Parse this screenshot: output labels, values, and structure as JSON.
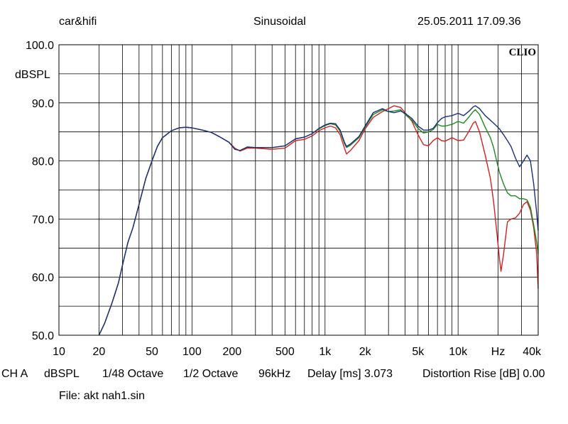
{
  "header": {
    "left": "car&hifi",
    "center": "Sinusoidal",
    "right": "25.05.2011 17.09.36"
  },
  "chart_data": {
    "type": "line",
    "logo": "CLIO",
    "ylabel": "dBSPL",
    "xscale": "log",
    "xlim": [
      10,
      40000
    ],
    "ylim": [
      50,
      100
    ],
    "grid": true,
    "y_ticks": [
      {
        "value": 100,
        "label": "100.0"
      },
      {
        "value": 90,
        "label": "90.0"
      },
      {
        "value": 80,
        "label": "80.0"
      },
      {
        "value": 70,
        "label": "70.0"
      },
      {
        "value": 60,
        "label": "60.0"
      },
      {
        "value": 50,
        "label": "50.0"
      }
    ],
    "x_ticks": [
      {
        "value": 10,
        "label": "10"
      },
      {
        "value": 20,
        "label": "20"
      },
      {
        "value": 50,
        "label": "50"
      },
      {
        "value": 100,
        "label": "100"
      },
      {
        "value": 200,
        "label": "200"
      },
      {
        "value": 500,
        "label": "500"
      },
      {
        "value": 1000,
        "label": "1k"
      },
      {
        "value": 2000,
        "label": "2k"
      },
      {
        "value": 5000,
        "label": "5k"
      },
      {
        "value": 10000,
        "label": "10k"
      },
      {
        "value": 20000,
        "label": "Hz"
      },
      {
        "value": 40000,
        "label": "40k"
      }
    ],
    "series": [
      {
        "color": "#d42020",
        "points": [
          [
            20,
            50
          ],
          [
            22,
            52
          ],
          [
            25,
            55.5
          ],
          [
            28,
            59
          ],
          [
            30,
            62
          ],
          [
            33,
            66
          ],
          [
            36,
            68.5
          ],
          [
            40,
            72.5
          ],
          [
            45,
            77
          ],
          [
            50,
            80
          ],
          [
            55,
            82.5
          ],
          [
            60,
            84
          ],
          [
            70,
            85.2
          ],
          [
            80,
            85.7
          ],
          [
            90,
            85.8
          ],
          [
            100,
            85.7
          ],
          [
            120,
            85.3
          ],
          [
            140,
            84.9
          ],
          [
            160,
            84.2
          ],
          [
            190,
            83.2
          ],
          [
            210,
            82.2
          ],
          [
            230,
            81.7
          ],
          [
            260,
            82.2
          ],
          [
            300,
            82.2
          ],
          [
            400,
            82
          ],
          [
            500,
            82.2
          ],
          [
            600,
            83.5
          ],
          [
            700,
            83.7
          ],
          [
            800,
            84.3
          ],
          [
            900,
            85.2
          ],
          [
            1000,
            85.7
          ],
          [
            1100,
            86
          ],
          [
            1200,
            85.7
          ],
          [
            1300,
            84.5
          ],
          [
            1400,
            82.2
          ],
          [
            1450,
            81.2
          ],
          [
            1550,
            81.8
          ],
          [
            1800,
            83.5
          ],
          [
            2000,
            85.5
          ],
          [
            2300,
            87.5
          ],
          [
            2700,
            88.5
          ],
          [
            3000,
            89
          ],
          [
            3300,
            89.5
          ],
          [
            3700,
            89.2
          ],
          [
            4000,
            88.3
          ],
          [
            4500,
            86.8
          ],
          [
            5000,
            84.5
          ],
          [
            5500,
            82.8
          ],
          [
            6000,
            82.6
          ],
          [
            6500,
            83.5
          ],
          [
            7000,
            84
          ],
          [
            7500,
            83.5
          ],
          [
            8000,
            83.4
          ],
          [
            9000,
            84
          ],
          [
            10000,
            83.5
          ],
          [
            11000,
            83.6
          ],
          [
            12000,
            85
          ],
          [
            13000,
            86.5
          ],
          [
            13500,
            86.8
          ],
          [
            14500,
            85
          ],
          [
            16000,
            81
          ],
          [
            17500,
            77
          ],
          [
            18500,
            73
          ],
          [
            19500,
            68
          ],
          [
            20500,
            63
          ],
          [
            21000,
            61
          ],
          [
            22000,
            64
          ],
          [
            23500,
            69.5
          ],
          [
            25000,
            70
          ],
          [
            27000,
            70.2
          ],
          [
            29000,
            71
          ],
          [
            31000,
            72.5
          ],
          [
            33000,
            73
          ],
          [
            35000,
            71.5
          ],
          [
            37000,
            68.5
          ],
          [
            39000,
            64
          ],
          [
            40000,
            58
          ]
        ]
      },
      {
        "color": "#1e8a1e",
        "points": [
          [
            20,
            50
          ],
          [
            22,
            52
          ],
          [
            25,
            55.5
          ],
          [
            28,
            59
          ],
          [
            30,
            62
          ],
          [
            33,
            66
          ],
          [
            36,
            68.5
          ],
          [
            40,
            72.5
          ],
          [
            45,
            77
          ],
          [
            50,
            80
          ],
          [
            55,
            82.5
          ],
          [
            60,
            84
          ],
          [
            70,
            85.2
          ],
          [
            80,
            85.7
          ],
          [
            90,
            85.8
          ],
          [
            100,
            85.7
          ],
          [
            120,
            85.3
          ],
          [
            140,
            84.9
          ],
          [
            160,
            84.2
          ],
          [
            190,
            83.2
          ],
          [
            210,
            82
          ],
          [
            230,
            81.8
          ],
          [
            260,
            82.4
          ],
          [
            300,
            82.3
          ],
          [
            400,
            82.3
          ],
          [
            500,
            82.6
          ],
          [
            600,
            83.8
          ],
          [
            700,
            84.1
          ],
          [
            800,
            84.7
          ],
          [
            900,
            85.5
          ],
          [
            1000,
            86.1
          ],
          [
            1100,
            86.4
          ],
          [
            1200,
            86.2
          ],
          [
            1300,
            85.1
          ],
          [
            1400,
            83
          ],
          [
            1450,
            82.3
          ],
          [
            1550,
            82.7
          ],
          [
            1800,
            84
          ],
          [
            2000,
            85.8
          ],
          [
            2300,
            88
          ],
          [
            2700,
            88.8
          ],
          [
            3000,
            88.5
          ],
          [
            3300,
            88.6
          ],
          [
            3700,
            88.8
          ],
          [
            4000,
            88
          ],
          [
            4500,
            87
          ],
          [
            5000,
            85.6
          ],
          [
            5500,
            84.8
          ],
          [
            6000,
            85
          ],
          [
            6500,
            85.4
          ],
          [
            7000,
            86.3
          ],
          [
            7500,
            86
          ],
          [
            8000,
            86
          ],
          [
            9000,
            86.3
          ],
          [
            10000,
            86.8
          ],
          [
            11000,
            86.5
          ],
          [
            12000,
            87.5
          ],
          [
            13000,
            88.5
          ],
          [
            13500,
            88.8
          ],
          [
            14500,
            88
          ],
          [
            16000,
            85.8
          ],
          [
            17500,
            84
          ],
          [
            18500,
            82.3
          ],
          [
            19500,
            80
          ],
          [
            20500,
            78
          ],
          [
            22000,
            76
          ],
          [
            23500,
            74.5
          ],
          [
            25000,
            74
          ],
          [
            27000,
            74
          ],
          [
            29000,
            73.5
          ],
          [
            31000,
            73.5
          ],
          [
            33000,
            73.3
          ],
          [
            35000,
            72
          ],
          [
            37000,
            69
          ],
          [
            39000,
            66
          ],
          [
            40000,
            64
          ]
        ]
      },
      {
        "color": "#1c2f80",
        "points": [
          [
            20,
            50
          ],
          [
            22,
            52
          ],
          [
            25,
            55.5
          ],
          [
            28,
            59
          ],
          [
            30,
            62
          ],
          [
            33,
            66
          ],
          [
            36,
            68.5
          ],
          [
            40,
            72.5
          ],
          [
            45,
            77
          ],
          [
            50,
            80
          ],
          [
            55,
            82.5
          ],
          [
            60,
            84
          ],
          [
            70,
            85.2
          ],
          [
            80,
            85.7
          ],
          [
            90,
            85.8
          ],
          [
            100,
            85.7
          ],
          [
            120,
            85.3
          ],
          [
            140,
            84.9
          ],
          [
            160,
            84.2
          ],
          [
            190,
            83.2
          ],
          [
            210,
            82
          ],
          [
            230,
            81.8
          ],
          [
            260,
            82.4
          ],
          [
            300,
            82.3
          ],
          [
            400,
            82.3
          ],
          [
            500,
            82.6
          ],
          [
            600,
            83.8
          ],
          [
            700,
            84.1
          ],
          [
            800,
            84.7
          ],
          [
            900,
            85.6
          ],
          [
            1000,
            86.2
          ],
          [
            1100,
            86.5
          ],
          [
            1200,
            86.4
          ],
          [
            1300,
            85.3
          ],
          [
            1400,
            83.2
          ],
          [
            1450,
            82.5
          ],
          [
            1550,
            82.9
          ],
          [
            1800,
            84.2
          ],
          [
            2000,
            86
          ],
          [
            2300,
            88.3
          ],
          [
            2700,
            89
          ],
          [
            3000,
            88.5
          ],
          [
            3300,
            88.3
          ],
          [
            3700,
            88.6
          ],
          [
            4000,
            88.2
          ],
          [
            4500,
            87.3
          ],
          [
            5000,
            86
          ],
          [
            5500,
            85.3
          ],
          [
            6000,
            85.3
          ],
          [
            6500,
            85.6
          ],
          [
            7000,
            86.6
          ],
          [
            7500,
            87.3
          ],
          [
            8000,
            87.6
          ],
          [
            9000,
            87.8
          ],
          [
            10000,
            88.2
          ],
          [
            11000,
            87.8
          ],
          [
            12000,
            88.5
          ],
          [
            13000,
            89.3
          ],
          [
            13500,
            89.5
          ],
          [
            14500,
            89
          ],
          [
            16000,
            87.8
          ],
          [
            17500,
            87
          ],
          [
            18500,
            86.5
          ],
          [
            19500,
            86
          ],
          [
            20500,
            85.5
          ],
          [
            22000,
            84.5
          ],
          [
            23500,
            83.5
          ],
          [
            25000,
            82.5
          ],
          [
            27000,
            80.5
          ],
          [
            29000,
            79
          ],
          [
            31000,
            80
          ],
          [
            33000,
            81
          ],
          [
            35000,
            80
          ],
          [
            37000,
            76
          ],
          [
            39000,
            71
          ],
          [
            40000,
            68
          ]
        ]
      }
    ]
  },
  "footer": {
    "channel": "CH A",
    "unit": "dBSPL",
    "smoothing": "1/48 Octave",
    "step": "1/2 Octave",
    "rate": "96kHz",
    "delay_label": "Delay [ms]",
    "delay_value": "3.073",
    "distortion_label": "Distortion Rise [dB]",
    "distortion_value": "0.00",
    "file_label": "File:",
    "file_name": "akt nah1.sin"
  }
}
